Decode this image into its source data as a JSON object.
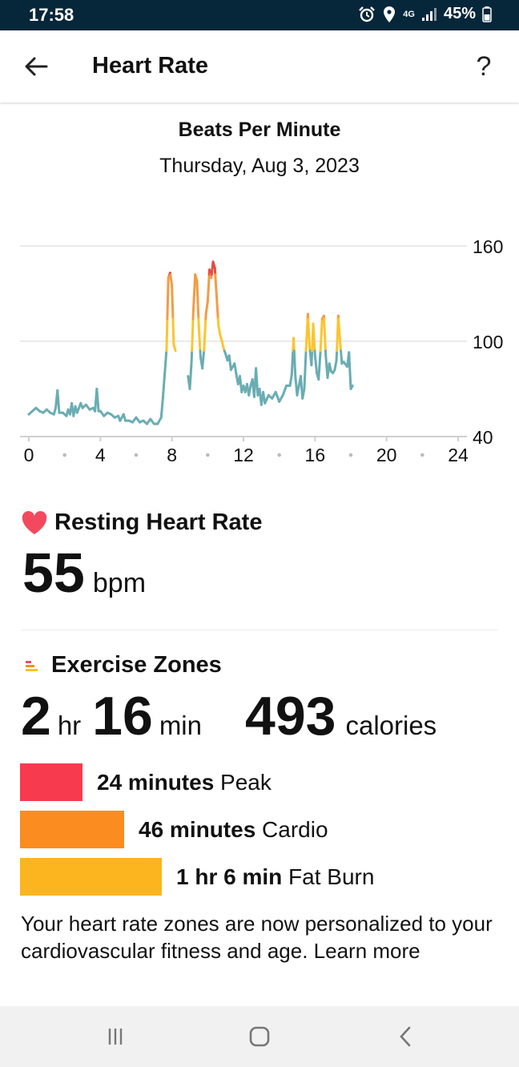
{
  "status_bar": {
    "time": "17:58",
    "network": "4G",
    "battery": "45%",
    "icons": [
      "alarm-icon",
      "location-icon",
      "signal-icon",
      "battery-icon"
    ]
  },
  "header": {
    "title": "Heart Rate",
    "back_icon": "arrow-left-icon",
    "help_label": "?"
  },
  "chart_header": {
    "title": "Beats Per Minute",
    "date": "Thursday, Aug 3, 2023"
  },
  "chart_data": {
    "type": "line",
    "title": "Beats Per Minute",
    "x_ticks": [
      "0",
      "4",
      "8",
      "12",
      "16",
      "20",
      "24"
    ],
    "y_ticks": [
      "40",
      "100",
      "160"
    ],
    "xlim": [
      0,
      24
    ],
    "ylim": [
      40,
      160
    ],
    "grid": true,
    "zone_colors": {
      "normal": "#6aadb2",
      "fat_burn": "#fbc531",
      "cardio": "#f39c45",
      "peak": "#e74c3c"
    },
    "zone_thresholds": {
      "fat_burn": 94,
      "cardio": 114,
      "peak": 142
    },
    "segments": [
      [
        [
          0.0,
          54
        ],
        [
          0.2,
          56
        ],
        [
          0.4,
          58
        ],
        [
          0.6,
          56
        ],
        [
          0.8,
          55
        ],
        [
          1.0,
          57
        ],
        [
          1.2,
          55
        ],
        [
          1.4,
          54
        ],
        [
          1.5,
          58
        ],
        [
          1.6,
          69
        ],
        [
          1.7,
          55
        ],
        [
          1.9,
          55
        ],
        [
          2.1,
          53
        ],
        [
          2.2,
          57
        ],
        [
          2.3,
          54
        ],
        [
          2.4,
          61
        ],
        [
          2.5,
          53
        ],
        [
          2.6,
          59
        ],
        [
          2.7,
          55
        ],
        [
          2.9,
          61
        ],
        [
          3.0,
          58
        ],
        [
          3.2,
          60
        ],
        [
          3.4,
          57
        ],
        [
          3.6,
          58
        ],
        [
          3.7,
          56
        ],
        [
          3.8,
          70
        ],
        [
          3.9,
          56
        ],
        [
          4.0,
          56
        ],
        [
          4.2,
          53
        ],
        [
          4.4,
          55
        ],
        [
          4.6,
          54
        ],
        [
          4.8,
          52
        ],
        [
          5.0,
          53
        ],
        [
          5.1,
          50
        ],
        [
          5.3,
          54
        ],
        [
          5.4,
          50
        ],
        [
          5.6,
          50
        ],
        [
          5.8,
          49
        ],
        [
          6.0,
          52
        ],
        [
          6.2,
          49
        ],
        [
          6.4,
          50
        ],
        [
          6.6,
          48
        ],
        [
          6.8,
          51
        ],
        [
          7.0,
          48
        ],
        [
          7.1,
          48
        ],
        [
          7.2,
          48
        ],
        [
          7.4,
          52
        ],
        [
          7.5,
          65
        ],
        [
          7.6,
          80
        ],
        [
          7.7,
          95
        ],
        [
          7.8,
          140
        ],
        [
          7.9,
          143
        ],
        [
          8.0,
          135
        ],
        [
          8.1,
          98
        ],
        [
          8.2,
          94
        ]
      ],
      [
        [
          8.9,
          78
        ],
        [
          9.0,
          70
        ],
        [
          9.1,
          88
        ],
        [
          9.2,
          120
        ],
        [
          9.3,
          142
        ],
        [
          9.4,
          138
        ],
        [
          9.5,
          110
        ],
        [
          9.6,
          90
        ],
        [
          9.7,
          83
        ],
        [
          9.8,
          95
        ],
        [
          9.9,
          117
        ],
        [
          10.0,
          125
        ],
        [
          10.1,
          145
        ],
        [
          10.2,
          140
        ],
        [
          10.3,
          150
        ],
        [
          10.4,
          146
        ],
        [
          10.5,
          128
        ],
        [
          10.6,
          110
        ],
        [
          10.7,
          104
        ],
        [
          10.8,
          100
        ],
        [
          10.9,
          95
        ],
        [
          11.0,
          92
        ],
        [
          11.1,
          88
        ],
        [
          11.2,
          91
        ],
        [
          11.3,
          82
        ],
        [
          11.5,
          86
        ],
        [
          11.6,
          79
        ],
        [
          11.7,
          73
        ],
        [
          11.8,
          78
        ],
        [
          11.9,
          68
        ],
        [
          12.0,
          72
        ],
        [
          12.1,
          68
        ],
        [
          12.2,
          73
        ],
        [
          12.3,
          66
        ],
        [
          12.4,
          72
        ],
        [
          12.5,
          76
        ],
        [
          12.6,
          65
        ],
        [
          12.7,
          83
        ],
        [
          12.8,
          66
        ],
        [
          12.9,
          70
        ],
        [
          13.0,
          60
        ],
        [
          13.1,
          68
        ],
        [
          13.2,
          61
        ],
        [
          13.4,
          66
        ],
        [
          13.6,
          64
        ],
        [
          13.8,
          68
        ],
        [
          14.0,
          62
        ],
        [
          14.2,
          66
        ],
        [
          14.4,
          72
        ],
        [
          14.6,
          72
        ],
        [
          14.7,
          79
        ],
        [
          14.8,
          102
        ],
        [
          14.9,
          78
        ],
        [
          15.0,
          66
        ],
        [
          15.2,
          78
        ],
        [
          15.3,
          64
        ],
        [
          15.4,
          70
        ],
        [
          15.5,
          95
        ],
        [
          15.6,
          117
        ],
        [
          15.7,
          96
        ],
        [
          15.8,
          85
        ],
        [
          15.9,
          111
        ],
        [
          16.0,
          91
        ],
        [
          16.1,
          80
        ],
        [
          16.2,
          76
        ],
        [
          16.3,
          93
        ],
        [
          16.4,
          114
        ],
        [
          16.5,
          116
        ],
        [
          16.6,
          91
        ],
        [
          16.7,
          77
        ],
        [
          16.8,
          86
        ],
        [
          16.9,
          81
        ],
        [
          17.0,
          80
        ],
        [
          17.1,
          82
        ],
        [
          17.2,
          88
        ],
        [
          17.3,
          116
        ],
        [
          17.4,
          100
        ],
        [
          17.5,
          86
        ],
        [
          17.6,
          87
        ],
        [
          17.8,
          84
        ],
        [
          17.9,
          93
        ],
        [
          18.0,
          70
        ],
        [
          18.1,
          72
        ]
      ]
    ]
  },
  "resting": {
    "icon": "heart-icon",
    "title": "Resting Heart Rate",
    "value": "55",
    "unit": "bpm"
  },
  "exercise": {
    "icon": "zones-icon",
    "title": "Exercise Zones",
    "hours": "2",
    "hours_unit": "hr",
    "minutes": "16",
    "minutes_unit": "min",
    "calories": "493",
    "calories_unit": "calories",
    "zones": [
      {
        "amount": "24 minutes",
        "label": " Peak",
        "color": "#f83a4f",
        "fraction": 0.15
      },
      {
        "amount": "46 minutes",
        "label": " Cardio",
        "color": "#fb8c1f",
        "fraction": 0.25
      },
      {
        "amount": "1 hr 6 min",
        "label": " Fat Burn",
        "color": "#fcb51f",
        "fraction": 0.34
      }
    ],
    "note": "Your heart rate zones are now personalized to your cardiovascular fitness and age. Learn more"
  },
  "navbar": {
    "icons": [
      "recent-apps-icon",
      "home-icon",
      "back-icon"
    ]
  }
}
